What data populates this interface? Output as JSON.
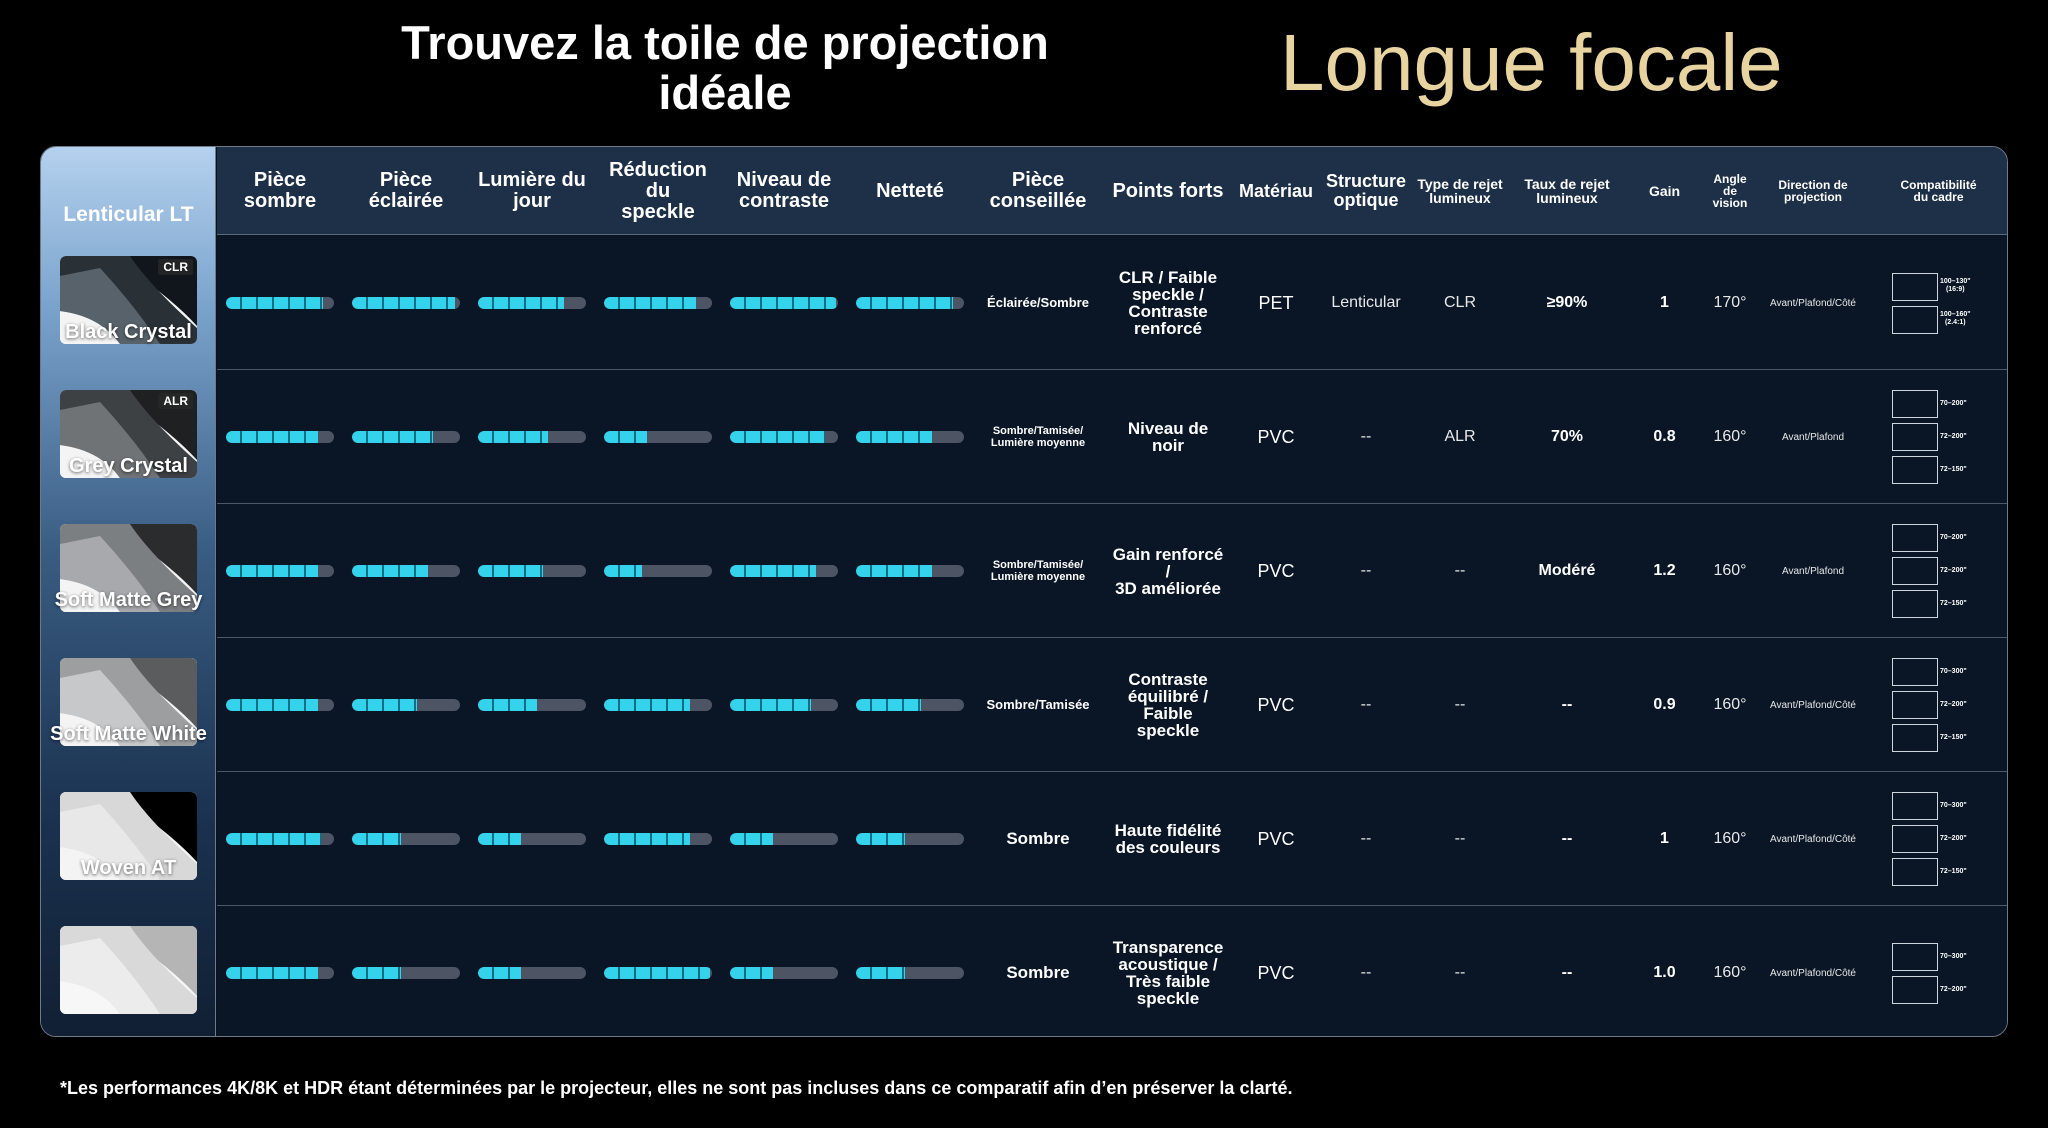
{
  "title_main": "Trouvez la toile de projection idéale",
  "title_side": "Longue focale",
  "sidebar_header": "Lenticular LT",
  "columns": {
    "dark_room": [
      "Pièce",
      "sombre"
    ],
    "lit_room": [
      "Pièce",
      "éclairée"
    ],
    "daylight": [
      "Lumière du",
      "jour"
    ],
    "speckle": [
      "Réduction",
      "du",
      "speckle"
    ],
    "contrast": [
      "Niveau de",
      "contraste"
    ],
    "sharpness": [
      "Netteté"
    ],
    "room": [
      "Pièce",
      "conseillée"
    ],
    "strengths": [
      "Points forts"
    ],
    "material": [
      "Matériau"
    ],
    "structure": [
      "Structure",
      "optique"
    ],
    "reject_type": [
      "Type de rejet",
      "lumineux"
    ],
    "reject_rate": [
      "Taux de rejet",
      "lumineux"
    ],
    "gain": [
      "Gain"
    ],
    "angle": [
      "Angle",
      "de",
      "vision"
    ],
    "direction": [
      "Direction de",
      "projection"
    ],
    "frame": [
      "Compatibilité",
      "du cadre"
    ]
  },
  "products": [
    {
      "name": "Black Crystal",
      "badge": "CLR",
      "ratings": [
        0.9,
        0.95,
        0.8,
        0.85,
        0.98,
        0.9
      ],
      "room": [
        "Éclairée/Sombre"
      ],
      "room_size": 13,
      "strengths": [
        "CLR / Faible",
        "speckle /",
        "Contraste",
        "renforcé"
      ],
      "material": "PET",
      "structure": "Lenticular",
      "reject_type": "CLR",
      "reject_rate": "≥90%",
      "gain": "1",
      "angle": "170°",
      "direction": "Avant/Plafond/Côté",
      "frames": [
        [
          "100–130\"",
          "(16:9)"
        ],
        [
          "100–160\"",
          "(2.4:1)"
        ]
      ]
    },
    {
      "name": "Grey Crystal",
      "badge": "ALR",
      "ratings": [
        0.85,
        0.75,
        0.65,
        0.4,
        0.88,
        0.7
      ],
      "room": [
        "Sombre/Tamisée/",
        "Lumière moyenne"
      ],
      "room_size": 11,
      "strengths": [
        "Niveau de",
        "noir"
      ],
      "material": "PVC",
      "structure": "--",
      "reject_type": "ALR",
      "reject_rate": "70%",
      "gain": "0.8",
      "angle": "160°",
      "direction": "Avant/Plafond",
      "frames": [
        [
          "70–200\""
        ],
        [
          "72–200\""
        ],
        [
          "72–150\""
        ]
      ]
    },
    {
      "name": "Soft Matte Grey",
      "badge": "",
      "ratings": [
        0.85,
        0.7,
        0.6,
        0.35,
        0.8,
        0.7
      ],
      "room": [
        "Sombre/Tamisée/",
        "Lumière moyenne"
      ],
      "room_size": 11,
      "strengths": [
        "Gain renforcé",
        "/",
        "3D améliorée"
      ],
      "material": "PVC",
      "structure": "--",
      "reject_type": "--",
      "reject_rate": "Modéré",
      "gain": "1.2",
      "angle": "160°",
      "direction": "Avant/Plafond",
      "frames": [
        [
          "70–200\""
        ],
        [
          "72–200\""
        ],
        [
          "72–150\""
        ]
      ]
    },
    {
      "name": "Soft Matte White",
      "badge": "",
      "ratings": [
        0.85,
        0.6,
        0.55,
        0.8,
        0.75,
        0.6
      ],
      "room": [
        "Sombre/Tamisée"
      ],
      "room_size": 13,
      "strengths": [
        "Contraste",
        "équilibré /",
        "Faible",
        "speckle"
      ],
      "material": "PVC",
      "structure": "--",
      "reject_type": "--",
      "reject_rate": "--",
      "gain": "0.9",
      "angle": "160°",
      "direction": "Avant/Plafond/Côté",
      "frames": [
        [
          "70–300\""
        ],
        [
          "72–200\""
        ],
        [
          "72–150\""
        ]
      ]
    },
    {
      "name": "Woven AT",
      "badge": "",
      "ratings": [
        0.88,
        0.45,
        0.4,
        0.8,
        0.4,
        0.45
      ],
      "room": [
        "Sombre"
      ],
      "room_size": 17,
      "strengths": [
        "Haute fidélité",
        "des couleurs"
      ],
      "material": "PVC",
      "structure": "--",
      "reject_type": "--",
      "reject_rate": "--",
      "gain": "1",
      "angle": "160°",
      "direction": "Avant/Plafond/Côté",
      "frames": [
        [
          "70–300\""
        ],
        [
          "72–200\""
        ],
        [
          "72–150\""
        ]
      ]
    },
    {
      "name": "",
      "badge": "",
      "ratings": [
        0.85,
        0.45,
        0.4,
        0.98,
        0.4,
        0.45
      ],
      "room": [
        "Sombre"
      ],
      "room_size": 17,
      "strengths": [
        "Transparence",
        "acoustique /",
        "Très faible",
        "speckle"
      ],
      "material": "PVC",
      "structure": "--",
      "reject_type": "--",
      "reject_rate": "--",
      "gain": "1.0",
      "angle": "160°",
      "direction": "Avant/Plafond/Côté",
      "frames": [
        [
          "70–300\""
        ],
        [
          "72–200\""
        ]
      ]
    }
  ],
  "footnote": "*Les performances 4K/8K et HDR étant déterminées par le projecteur, elles ne sont pas incluses dans ce comparatif afin d’en préserver la clarté."
}
